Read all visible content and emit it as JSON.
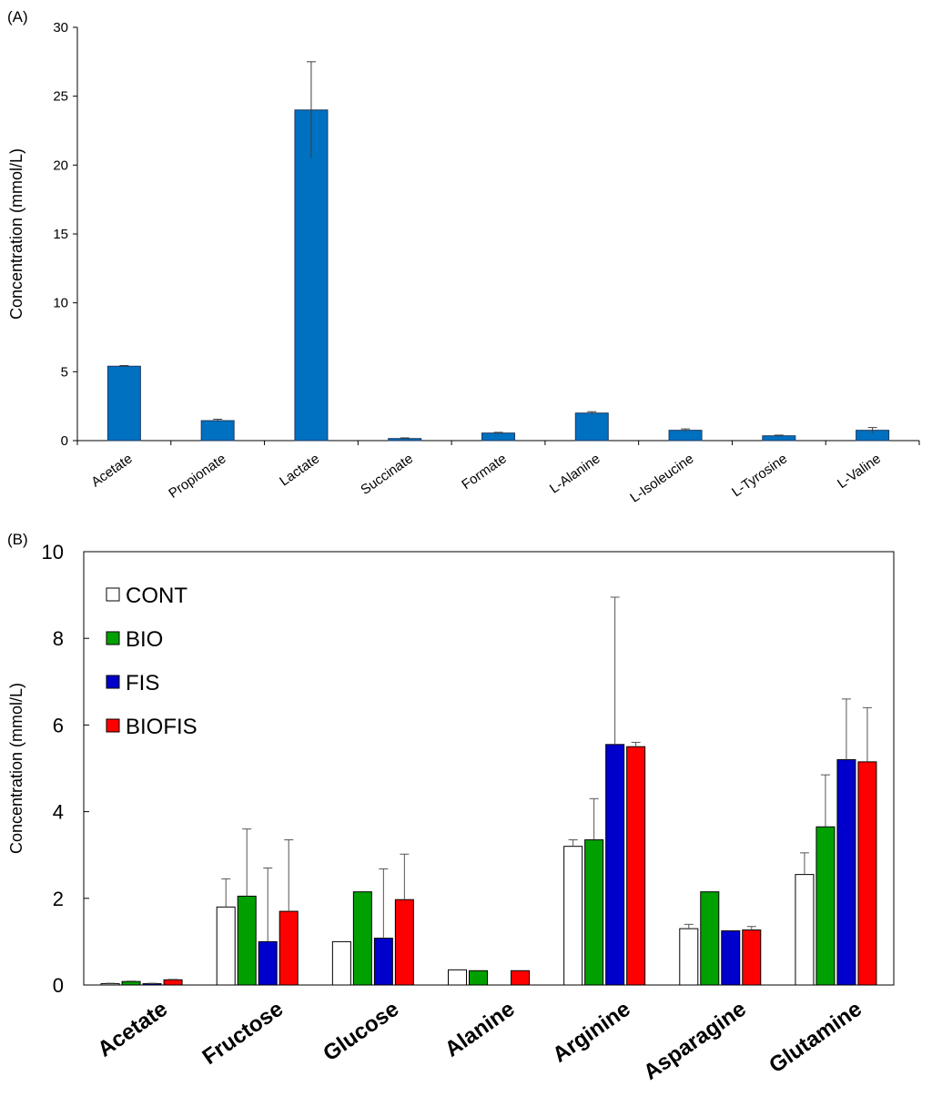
{
  "chart_data": [
    {
      "panel": "(A)",
      "type": "bar",
      "categories": [
        "Acetate",
        "Propionate",
        "Lactate",
        "Succinate",
        "Formate",
        "L-Alanine",
        "L-Isoleucine",
        "L-Tyrosine",
        "L-Valine"
      ],
      "values": [
        5.4,
        1.45,
        24.0,
        0.15,
        0.55,
        2.0,
        0.75,
        0.35,
        0.75
      ],
      "errors": [
        0.05,
        0.1,
        3.5,
        0.05,
        0.05,
        0.1,
        0.1,
        0.05,
        0.2
      ],
      "ylabel": "Concentration (mmol/L)",
      "ylim": [
        0,
        30
      ],
      "yticks": [
        "0",
        "5",
        "10",
        "15",
        "20",
        "25",
        "30"
      ],
      "bar_color": "#0070C0",
      "grid": false
    },
    {
      "panel": "(B)",
      "type": "bar",
      "categories": [
        "Acetate",
        "Fructose",
        "Glucose",
        "Alanine",
        "Arginine",
        "Asparagine",
        "Glutamine"
      ],
      "series": [
        {
          "name": "CONT",
          "color": "#ffffff",
          "values": [
            0.03,
            1.8,
            1.0,
            0.35,
            3.2,
            1.3,
            2.55
          ],
          "errors": [
            0.01,
            0.65,
            0.0,
            0.0,
            0.15,
            0.1,
            0.5
          ]
        },
        {
          "name": "BIO",
          "color": "#00A000",
          "values": [
            0.08,
            2.05,
            2.15,
            0.33,
            3.35,
            2.15,
            3.65
          ],
          "errors": [
            0.01,
            1.55,
            0.0,
            0.0,
            0.95,
            0.0,
            1.2
          ]
        },
        {
          "name": "FIS",
          "color": "#0000CC",
          "values": [
            0.03,
            1.0,
            1.08,
            0.0,
            5.55,
            1.25,
            5.2
          ],
          "errors": [
            0.01,
            1.7,
            1.6,
            0.0,
            3.4,
            0.0,
            1.4
          ]
        },
        {
          "name": "BIOFIS",
          "color": "#FF0000",
          "values": [
            0.12,
            1.7,
            1.97,
            0.33,
            5.5,
            1.27,
            5.15
          ],
          "errors": [
            0.01,
            1.65,
            1.05,
            0.0,
            0.1,
            0.08,
            1.25
          ]
        }
      ],
      "ylabel": "Concentration (mmol/L)",
      "ylim": [
        0,
        10
      ],
      "yticks": [
        "0",
        "2",
        "4",
        "6",
        "8",
        "10"
      ],
      "legend_position": "top-left",
      "grid": false
    }
  ]
}
